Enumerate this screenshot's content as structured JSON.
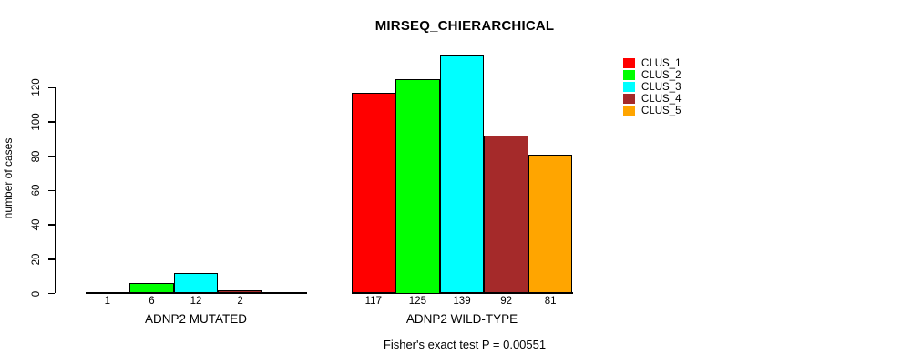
{
  "figure": {
    "title": "MIRSEQ_CHIERARCHICAL",
    "ylabel": "number of cases",
    "footer": "Fisher's exact test P = 0.00551"
  },
  "legend": {
    "items": [
      {
        "label": "CLUS_1",
        "color": "#FF0000"
      },
      {
        "label": "CLUS_2",
        "color": "#00FF00"
      },
      {
        "label": "CLUS_3",
        "color": "#00FFFF"
      },
      {
        "label": "CLUS_4",
        "color": "#A52A2A"
      },
      {
        "label": "CLUS_5",
        "color": "#FFA500"
      }
    ]
  },
  "chart_data": {
    "type": "bar",
    "title": "MIRSEQ_CHIERARCHICAL",
    "ylabel": "number of cases",
    "xlabel": "",
    "yticks": [
      0,
      20,
      40,
      60,
      80,
      100,
      120
    ],
    "ylim": [
      0,
      139
    ],
    "grid": false,
    "legend_position": "topright",
    "legend_entries": [
      "CLUS_1",
      "CLUS_2",
      "CLUS_3",
      "CLUS_4",
      "CLUS_5"
    ],
    "cluster_colors": [
      "#FF0000",
      "#00FF00",
      "#00FFFF",
      "#A52A2A",
      "#FFA500"
    ],
    "groups": [
      {
        "label": "ADNP2 MUTATED",
        "values": [
          1,
          6,
          12,
          2,
          0
        ],
        "bar_labels": [
          "1",
          "6",
          "12",
          "2",
          ""
        ]
      },
      {
        "label": "ADNP2 WILD-TYPE",
        "values": [
          117,
          125,
          139,
          92,
          81
        ],
        "bar_labels": [
          "117",
          "125",
          "139",
          "92",
          "81"
        ]
      }
    ],
    "annotation": "Fisher's exact test P = 0.00551"
  }
}
